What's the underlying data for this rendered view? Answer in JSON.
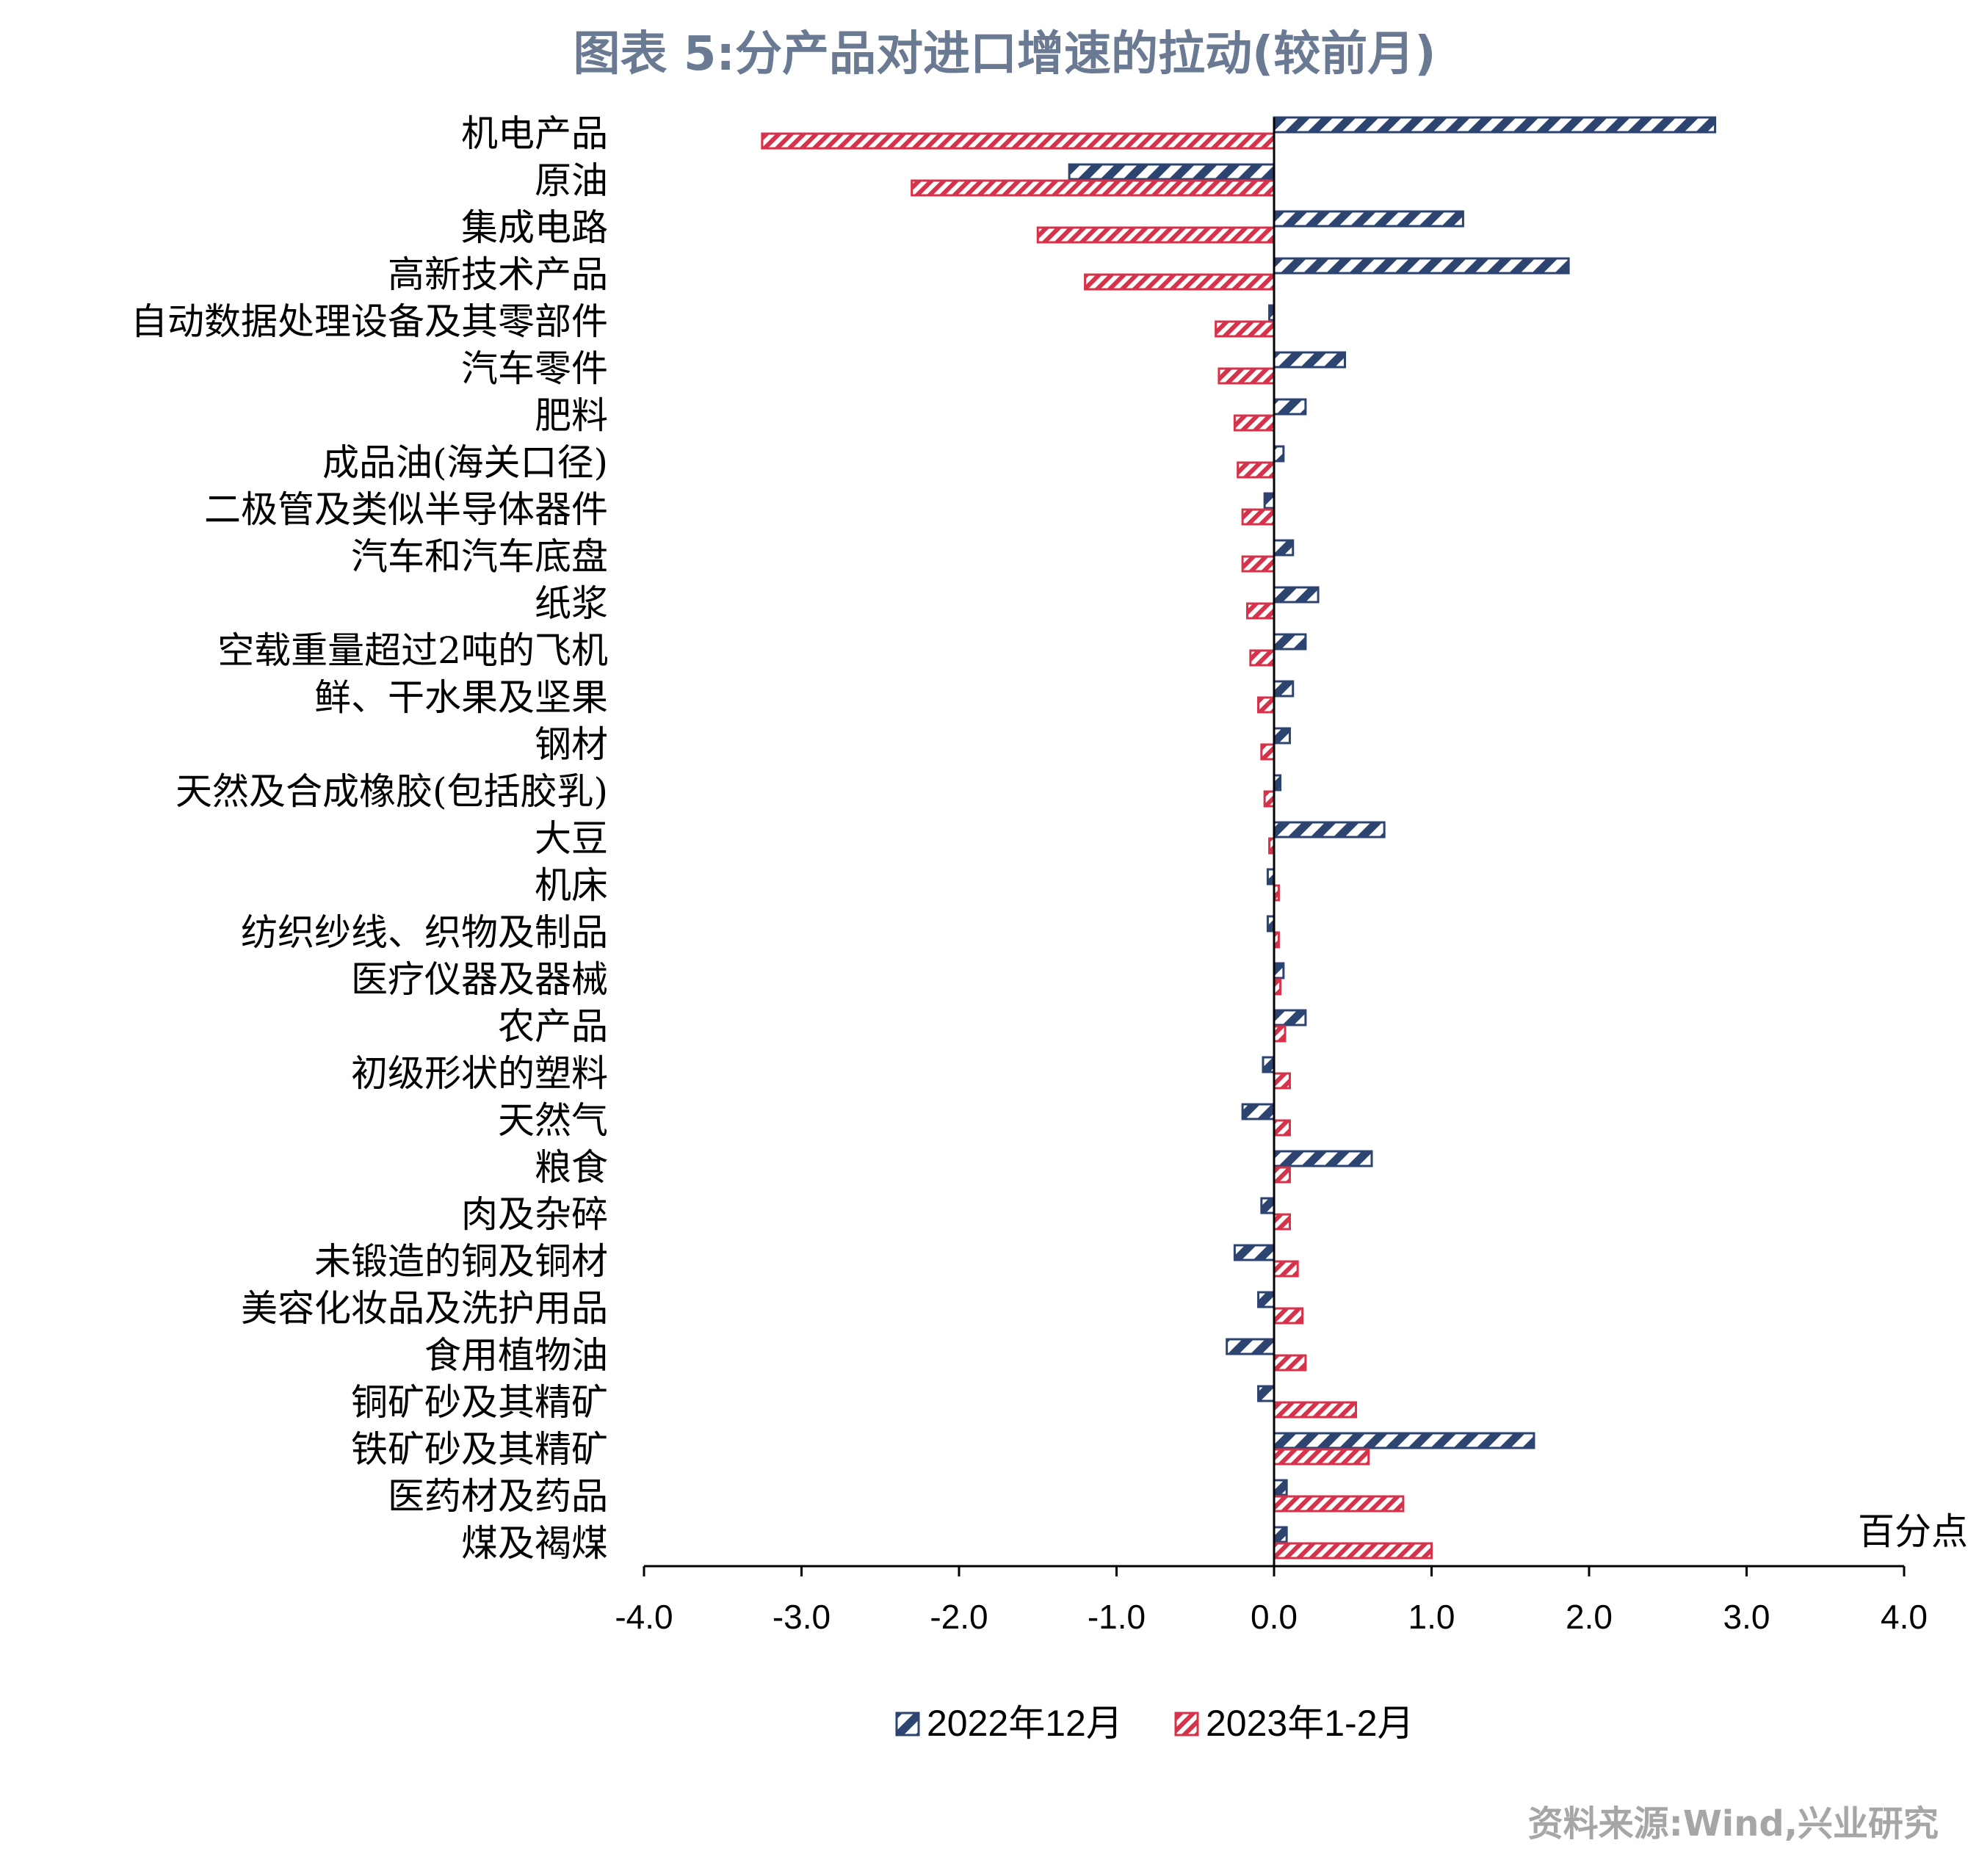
{
  "title": "图表 5:分产品对进口增速的拉动(较前月)",
  "unit_label": "百分点",
  "source": "资料来源:Wind,兴业研究",
  "colors": {
    "series_2022_12": "#2e4470",
    "series_2023_1_2": "#d6334a",
    "title": "#6b7a93",
    "source": "#a6a6a6"
  },
  "chart_data": {
    "type": "bar",
    "orientation": "horizontal",
    "title": "图表 5:分产品对进口增速的拉动(较前月)",
    "xlabel": "百分点",
    "xlim": [
      -4.0,
      4.0
    ],
    "x_ticks": [
      "-4.0",
      "-3.0",
      "-2.0",
      "-1.0",
      "0.0",
      "1.0",
      "2.0",
      "3.0",
      "4.0"
    ],
    "x_tick_values": [
      -4,
      -3,
      -2,
      -1,
      0,
      1,
      2,
      3,
      4
    ],
    "legend_position": "bottom-center",
    "grid": false,
    "categories": [
      "机电产品",
      "原油",
      "集成电路",
      "高新技术产品",
      "自动数据处理设备及其零部件",
      "汽车零件",
      "肥料",
      "成品油(海关口径)",
      "二极管及类似半导体器件",
      "汽车和汽车底盘",
      "纸浆",
      "空载重量超过2吨的飞机",
      "鲜、干水果及坚果",
      "钢材",
      "天然及合成橡胶(包括胶乳)",
      "大豆",
      "机床",
      "纺织纱线、织物及制品",
      "医疗仪器及器械",
      "农产品",
      "初级形状的塑料",
      "天然气",
      "粮食",
      "肉及杂碎",
      "未锻造的铜及铜材",
      "美容化妆品及洗护用品",
      "食用植物油",
      "铜矿砂及其精矿",
      "铁矿砂及其精矿",
      "医药材及药品",
      "煤及褐煤"
    ],
    "series": [
      {
        "name": "2022年12月",
        "values": [
          2.8,
          -1.3,
          1.2,
          1.87,
          -0.03,
          0.45,
          0.2,
          0.06,
          -0.06,
          0.12,
          0.28,
          0.2,
          0.12,
          0.1,
          0.04,
          0.7,
          -0.04,
          -0.04,
          0.06,
          0.2,
          -0.07,
          -0.2,
          0.62,
          -0.08,
          -0.25,
          -0.1,
          -0.3,
          -0.1,
          1.65,
          0.08,
          0.08
        ]
      },
      {
        "name": "2023年1-2月",
        "values": [
          -3.25,
          -2.3,
          -1.5,
          -1.2,
          -0.37,
          -0.35,
          -0.25,
          -0.23,
          -0.2,
          -0.2,
          -0.17,
          -0.15,
          -0.1,
          -0.08,
          -0.06,
          -0.03,
          0.03,
          0.03,
          0.04,
          0.07,
          0.1,
          0.1,
          0.1,
          0.1,
          0.15,
          0.18,
          0.2,
          0.52,
          0.6,
          0.82,
          1.0
        ]
      }
    ]
  }
}
